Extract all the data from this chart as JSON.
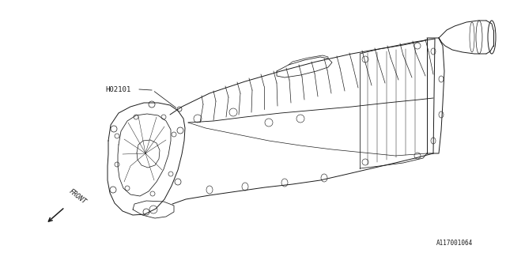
{
  "background_color": "#ffffff",
  "line_color": "#1a1a1a",
  "line_width": 0.7,
  "label_H02101": "H02101",
  "label_front": "FRONT",
  "label_part_number": "A117001064",
  "fig_width": 6.4,
  "fig_height": 3.2,
  "dpi": 100
}
